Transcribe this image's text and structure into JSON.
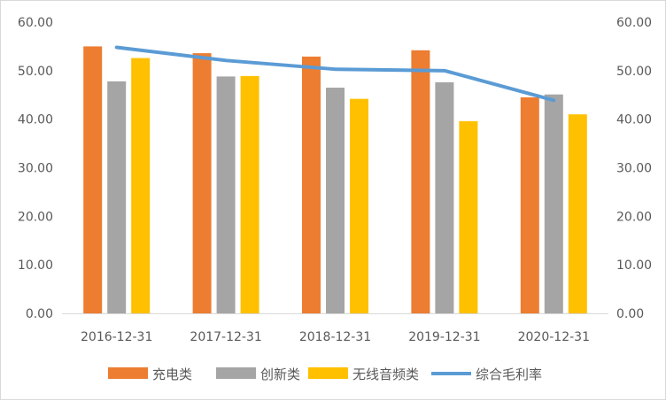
{
  "chart_data": {
    "type": "bar",
    "categories": [
      "2016-12-31",
      "2017-12-31",
      "2018-12-31",
      "2019-12-31",
      "2020-12-31"
    ],
    "series": [
      {
        "name": "充电类",
        "kind": "bar",
        "color": "#ED7D31",
        "values": [
          55.0,
          53.6,
          52.9,
          54.2,
          44.5
        ]
      },
      {
        "name": "创新类",
        "kind": "bar",
        "color": "#A5A5A5",
        "values": [
          47.8,
          48.8,
          46.5,
          47.6,
          45.1
        ]
      },
      {
        "name": "无线音频类",
        "kind": "bar",
        "color": "#FFC000",
        "values": [
          52.6,
          48.9,
          44.2,
          39.6,
          41.0
        ]
      },
      {
        "name": "综合毛利率",
        "kind": "line",
        "color": "#5B9BD5",
        "values": [
          54.8,
          52.1,
          50.3,
          50.0,
          43.9
        ]
      }
    ],
    "ylim": [
      0,
      60
    ],
    "y_ticks": [
      "0.00",
      "10.00",
      "20.00",
      "30.00",
      "40.00",
      "50.00",
      "60.00"
    ],
    "secondary_ylim": [
      0,
      60
    ],
    "secondary_y_ticks": [
      "0.00",
      "10.00",
      "20.00",
      "30.00",
      "40.00",
      "50.00",
      "60.00"
    ],
    "grid": false,
    "legend_position": "bottom"
  }
}
